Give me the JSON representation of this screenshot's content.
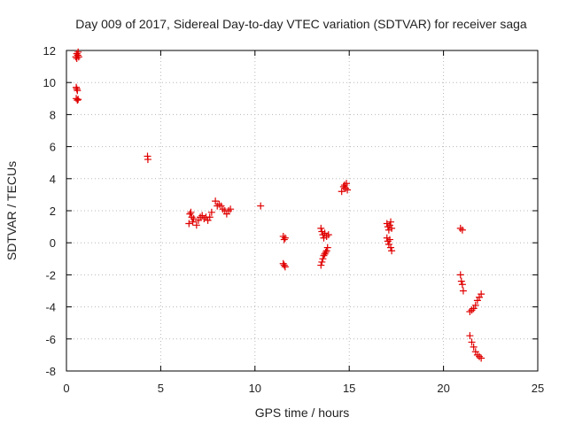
{
  "chart_data": {
    "type": "scatter",
    "title": "Day 009 of 2017, Sidereal Day-to-day VTEC variation (SDTVAR) for receiver saga",
    "xlabel": "GPS time / hours",
    "ylabel": "SDTVAR / TECUs",
    "xlim": [
      0,
      25
    ],
    "ylim": [
      -8,
      12
    ],
    "xticks": [
      0,
      5,
      10,
      15,
      20,
      25
    ],
    "yticks": [
      -8,
      -6,
      -4,
      -2,
      0,
      2,
      4,
      6,
      8,
      10,
      12
    ],
    "grid": true,
    "marker": "plus",
    "color": "#e00000",
    "series": [
      {
        "name": "SDTVAR",
        "points": [
          [
            0.5,
            11.6
          ],
          [
            0.55,
            11.8
          ],
          [
            0.6,
            11.7
          ],
          [
            0.65,
            11.6
          ],
          [
            0.55,
            11.5
          ],
          [
            0.62,
            11.9
          ],
          [
            0.52,
            9.7
          ],
          [
            0.58,
            9.5
          ],
          [
            0.55,
            9.6
          ],
          [
            0.52,
            9.0
          ],
          [
            0.58,
            8.9
          ],
          [
            0.62,
            8.95
          ],
          [
            4.3,
            5.4
          ],
          [
            4.32,
            5.2
          ],
          [
            6.5,
            1.2
          ],
          [
            6.55,
            1.8
          ],
          [
            6.6,
            1.9
          ],
          [
            6.65,
            1.6
          ],
          [
            6.7,
            1.3
          ],
          [
            6.75,
            1.5
          ],
          [
            6.9,
            1.1
          ],
          [
            7.0,
            1.4
          ],
          [
            7.1,
            1.6
          ],
          [
            7.2,
            1.7
          ],
          [
            7.3,
            1.5
          ],
          [
            7.4,
            1.6
          ],
          [
            7.5,
            1.4
          ],
          [
            7.6,
            1.6
          ],
          [
            7.7,
            1.9
          ],
          [
            7.9,
            2.6
          ],
          [
            8.0,
            2.3
          ],
          [
            8.1,
            2.4
          ],
          [
            8.2,
            2.3
          ],
          [
            8.3,
            2.1
          ],
          [
            8.4,
            2.0
          ],
          [
            8.5,
            1.8
          ],
          [
            8.6,
            2.0
          ],
          [
            8.7,
            2.1
          ],
          [
            10.3,
            2.3
          ],
          [
            11.5,
            0.4
          ],
          [
            11.55,
            0.2
          ],
          [
            11.6,
            0.3
          ],
          [
            11.5,
            -1.3
          ],
          [
            11.55,
            -1.4
          ],
          [
            11.6,
            -1.5
          ],
          [
            13.5,
            0.9
          ],
          [
            13.55,
            0.7
          ],
          [
            13.6,
            0.5
          ],
          [
            13.65,
            0.3
          ],
          [
            13.7,
            0.6
          ],
          [
            13.8,
            0.4
          ],
          [
            13.9,
            0.5
          ],
          [
            13.5,
            -1.4
          ],
          [
            13.55,
            -1.2
          ],
          [
            13.6,
            -1.0
          ],
          [
            13.65,
            -0.8
          ],
          [
            13.7,
            -0.7
          ],
          [
            13.75,
            -0.6
          ],
          [
            13.8,
            -0.5
          ],
          [
            13.85,
            -0.3
          ],
          [
            14.6,
            3.2
          ],
          [
            14.7,
            3.5
          ],
          [
            14.75,
            3.6
          ],
          [
            14.8,
            3.4
          ],
          [
            14.85,
            3.7
          ],
          [
            14.9,
            3.3
          ],
          [
            17.0,
            1.2
          ],
          [
            17.05,
            1.0
          ],
          [
            17.1,
            0.8
          ],
          [
            17.15,
            1.1
          ],
          [
            17.2,
            1.3
          ],
          [
            17.25,
            0.9
          ],
          [
            17.0,
            0.3
          ],
          [
            17.05,
            0.1
          ],
          [
            17.1,
            -0.1
          ],
          [
            17.15,
            0.2
          ],
          [
            17.2,
            -0.3
          ],
          [
            17.25,
            -0.5
          ],
          [
            20.9,
            0.9
          ],
          [
            21.0,
            0.8
          ],
          [
            20.9,
            -2.0
          ],
          [
            20.95,
            -2.4
          ],
          [
            21.0,
            -2.6
          ],
          [
            21.05,
            -3.0
          ],
          [
            21.4,
            -4.3
          ],
          [
            21.5,
            -4.2
          ],
          [
            21.6,
            -4.1
          ],
          [
            21.7,
            -3.9
          ],
          [
            21.8,
            -3.6
          ],
          [
            21.9,
            -3.4
          ],
          [
            22.0,
            -3.2
          ],
          [
            21.4,
            -5.8
          ],
          [
            21.5,
            -6.2
          ],
          [
            21.6,
            -6.5
          ],
          [
            21.7,
            -6.8
          ],
          [
            21.8,
            -7.0
          ],
          [
            21.9,
            -7.1
          ],
          [
            22.0,
            -7.2
          ]
        ]
      }
    ]
  }
}
